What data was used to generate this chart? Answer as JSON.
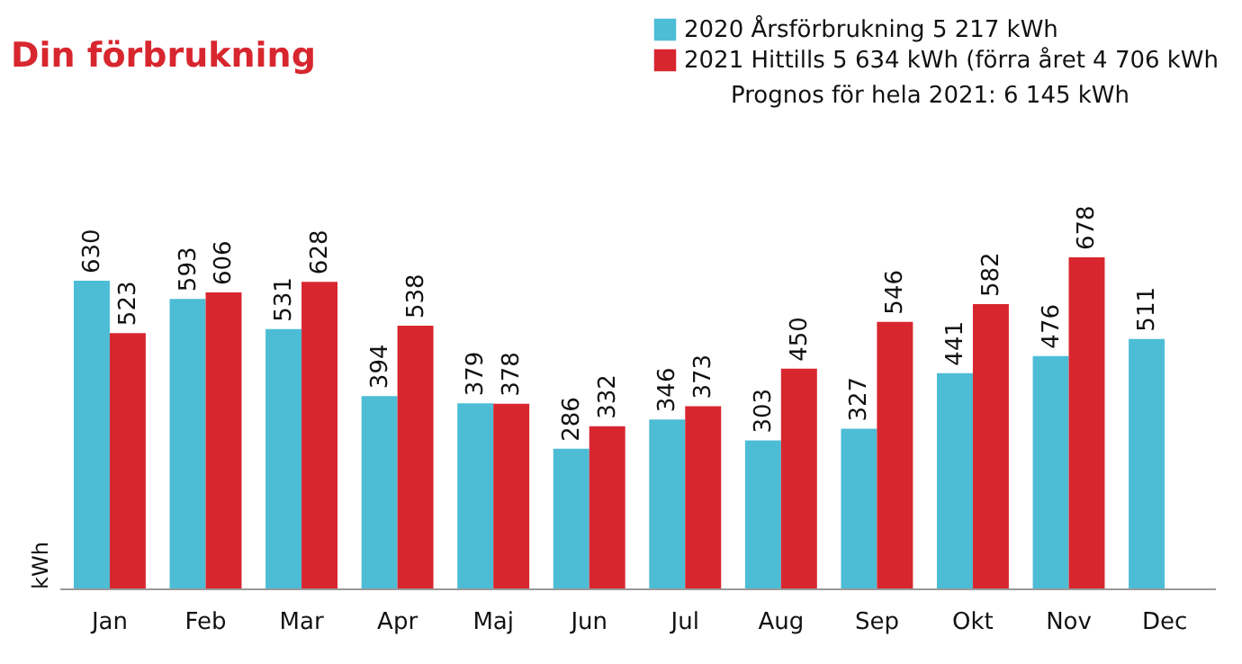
{
  "chart_data": {
    "type": "bar",
    "title": "Din förbrukning",
    "ylabel": "kWh",
    "categories": [
      "Jan",
      "Feb",
      "Mar",
      "Apr",
      "Maj",
      "Jun",
      "Jul",
      "Aug",
      "Sep",
      "Okt",
      "Nov",
      "Dec"
    ],
    "series": [
      {
        "name": "2020 Årsförbrukning 5 217 kWh",
        "color": "#4cbdd5",
        "values": [
          630,
          593,
          531,
          394,
          379,
          286,
          346,
          303,
          327,
          441,
          476,
          511
        ]
      },
      {
        "name": "2021 Hittills 5 634 kWh (förra året 4 706 kWh",
        "color": "#d8262f",
        "values": [
          523,
          606,
          628,
          538,
          378,
          332,
          373,
          450,
          546,
          582,
          678,
          null
        ]
      }
    ],
    "annotations": [
      "Prognos för hela 2021: 6 145 kWh"
    ],
    "relative": false,
    "data_labels": true,
    "legend": "top right",
    "grid": false
  }
}
